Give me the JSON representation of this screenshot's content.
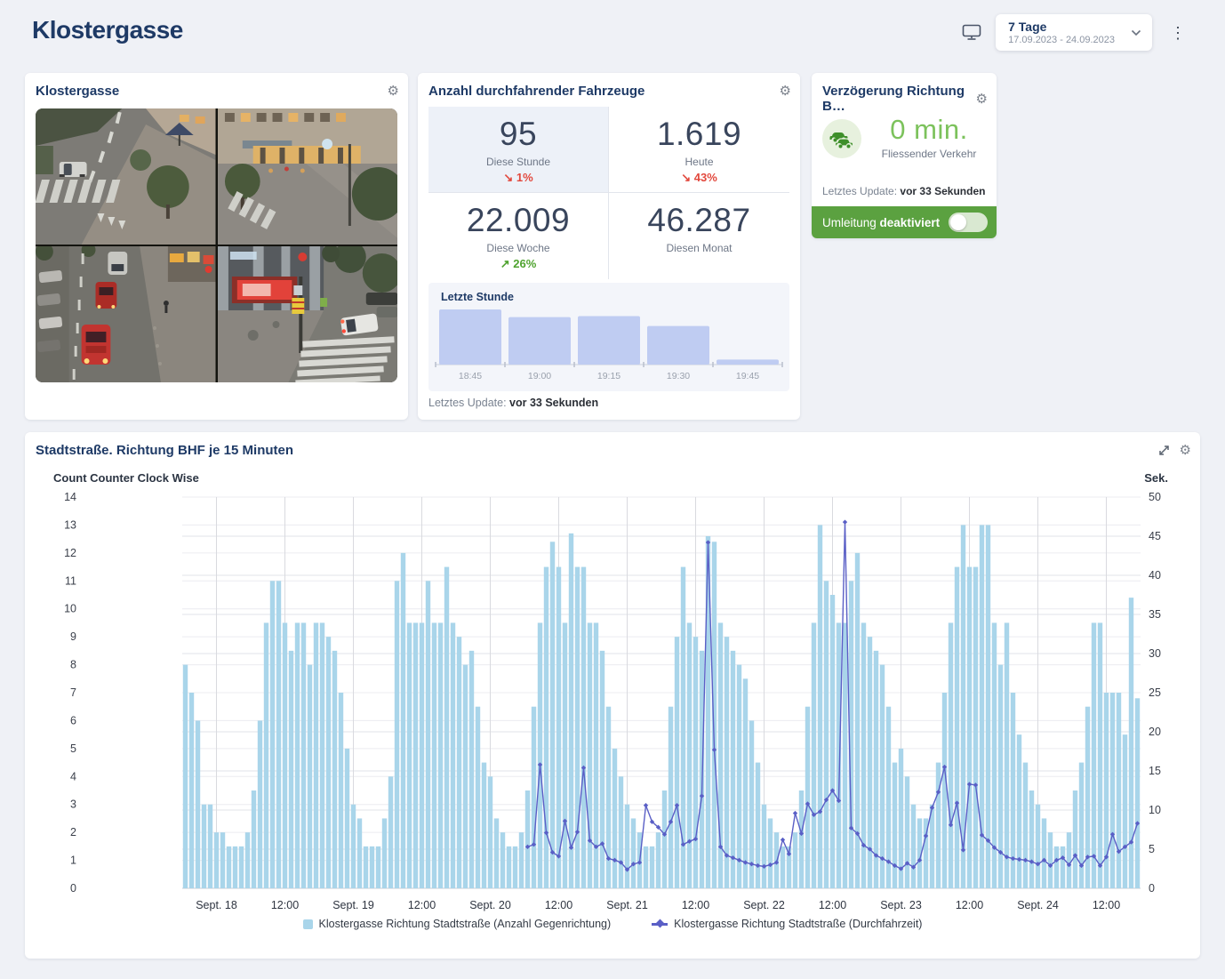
{
  "page": {
    "title": "Klostergasse"
  },
  "header": {
    "range": {
      "label": "7 Tage",
      "dates": "17.09.2023 - 24.09.2023"
    }
  },
  "icons": {
    "gear": "⚙",
    "kebab": "⋮"
  },
  "camera_card": {
    "title": "Klostergasse"
  },
  "vehicles_card": {
    "title": "Anzahl durchfahrender Fahrzeuge",
    "stats": [
      {
        "value": "95",
        "label": "Diese Stunde",
        "arrow": "↘",
        "delta": "1%",
        "trend": "down"
      },
      {
        "value": "1.619",
        "label": "Heute",
        "arrow": "↘",
        "delta": "43%",
        "trend": "down"
      },
      {
        "value": "22.009",
        "label": "Diese Woche",
        "arrow": "↗",
        "delta": "26%",
        "trend": "up"
      },
      {
        "value": "46.287",
        "label": "Diesen Monat",
        "arrow": "",
        "delta": "",
        "trend": "none"
      }
    ],
    "update_label": "Letztes Update:",
    "update_value": "vor 33 Sekunden"
  },
  "delay_card": {
    "title": "Verzögerung Richtung B…",
    "value": "0 min.",
    "status": "Fliessender Verkehr",
    "update_label": "Letztes Update:",
    "update_value": "vor 33 Sekunden",
    "banner": {
      "label": "Umleitung",
      "state": "deaktiviert",
      "enabled": false
    }
  },
  "chart_card": {
    "title": "Stadtstraße. Richtung BHF je 15 Minuten"
  },
  "colors": {
    "accent_navy": "#1e3a66",
    "bar_blue": "#a9d5ea",
    "line_purple": "#5a5fc6",
    "mini_bar_blue": "#bfccf2",
    "green_banner": "#5ba140",
    "delta_red": "#e2483d",
    "delta_green": "#4fa32f",
    "value_green": "#7cc25c"
  },
  "chart_data": [
    {
      "id": "last_hour",
      "type": "bar",
      "title": "Letzte Stunde",
      "categories": [
        "18:45",
        "19:00",
        "19:15",
        "19:30",
        "19:45"
      ],
      "values_relative": [
        1.0,
        0.86,
        0.88,
        0.7,
        0.09
      ],
      "color": "#bfccf2"
    },
    {
      "id": "main",
      "type": "bar+line",
      "title": "Stadtstraße. Richtung BHF je 15 Minuten",
      "left_axis": {
        "label": "Count Counter Clock Wise",
        "min": 0,
        "max": 14,
        "step": 1
      },
      "right_axis": {
        "label": "Sek.",
        "min": 0,
        "max": 50,
        "step": 5
      },
      "slot_count": 154,
      "x_labels": [
        {
          "text": "Sept. 18",
          "slot": 5
        },
        {
          "text": "12:00",
          "slot": 16
        },
        {
          "text": "Sept. 19",
          "slot": 27
        },
        {
          "text": "12:00",
          "slot": 38
        },
        {
          "text": "Sept. 20",
          "slot": 49
        },
        {
          "text": "12:00",
          "slot": 60
        },
        {
          "text": "Sept. 21",
          "slot": 71
        },
        {
          "text": "12:00",
          "slot": 82
        },
        {
          "text": "Sept. 22",
          "slot": 93
        },
        {
          "text": "12:00",
          "slot": 104
        },
        {
          "text": "Sept. 23",
          "slot": 115
        },
        {
          "text": "12:00",
          "slot": 126
        },
        {
          "text": "Sept. 24",
          "slot": 137
        },
        {
          "text": "12:00",
          "slot": 148
        }
      ],
      "series": [
        {
          "name": "Klostergasse Richtung Stadtstraße (Anzahl Gegenrichtung)",
          "type": "bar",
          "axis": "left",
          "color": "#a9d5ea",
          "values": [
            8,
            7,
            6,
            3,
            3,
            2,
            2,
            1.5,
            1.5,
            1.5,
            2,
            3.5,
            6,
            9.5,
            11,
            11,
            9.5,
            8.5,
            9.5,
            9.5,
            8,
            9.5,
            9.5,
            9,
            8.5,
            7,
            5,
            3,
            2.5,
            1.5,
            1.5,
            1.5,
            2.5,
            4,
            11,
            12,
            9.5,
            9.5,
            9.5,
            11,
            9.5,
            9.5,
            11.5,
            9.5,
            9,
            8,
            8.5,
            6.5,
            4.5,
            4,
            2.5,
            2,
            1.5,
            1.5,
            2,
            3.5,
            6.5,
            9.5,
            11.5,
            12.4,
            11.5,
            9.5,
            12.7,
            11.5,
            11.5,
            9.5,
            9.5,
            8.5,
            6.5,
            5,
            4,
            3,
            2.5,
            2,
            1.5,
            1.5,
            2,
            3.5,
            6.5,
            9,
            11.5,
            9.5,
            9,
            8.5,
            12.6,
            12.4,
            9.5,
            9,
            8.5,
            8,
            7.5,
            6,
            4.5,
            3,
            2.5,
            2,
            1.5,
            1.5,
            2,
            3.5,
            6.5,
            9.5,
            13,
            11,
            10.5,
            9.5,
            9.5,
            11,
            12,
            9.5,
            9,
            8.5,
            8,
            6.5,
            4.5,
            5,
            4,
            3,
            2.5,
            2.5,
            3,
            4.5,
            7,
            9.5,
            11.5,
            13,
            11.5,
            11.5,
            13,
            13,
            9.5,
            8,
            9.5,
            7,
            5.5,
            4.5,
            3.5,
            3,
            2.5,
            2,
            1.5,
            1.5,
            2,
            3.5,
            4.5,
            6.5,
            9.5,
            9.5,
            7,
            7,
            7,
            5.5,
            10.4,
            6.8
          ]
        },
        {
          "name": "Klostergasse Richtung Stadtstraße (Durchfahrzeit)",
          "type": "line",
          "axis": "right",
          "color": "#5a5fc6",
          "start_slot": 55,
          "values": [
            5.3,
            5.6,
            15.8,
            7.1,
            4.6,
            4.1,
            8.6,
            5.2,
            7.2,
            15.4,
            6.1,
            5.3,
            5.7,
            3.8,
            3.6,
            3.3,
            2.4,
            3.1,
            3.3,
            10.6,
            8.5,
            7.8,
            6.9,
            8.5,
            10.6,
            5.6,
            6.0,
            6.3,
            11.8,
            44.2,
            17.7,
            5.3,
            4.2,
            3.9,
            3.6,
            3.3,
            3.1,
            2.9,
            2.8,
            3.0,
            3.3,
            6.2,
            4.4,
            9.6,
            7.0,
            10.8,
            9.4,
            9.8,
            11.3,
            12.5,
            11.2,
            46.8,
            7.7,
            7.0,
            5.5,
            5.0,
            4.2,
            3.8,
            3.4,
            2.9,
            2.5,
            3.2,
            2.7,
            3.6,
            6.7,
            10.3,
            12.3,
            15.5,
            8.1,
            10.9,
            4.9,
            13.3,
            13.2,
            6.8,
            6.1,
            5.2,
            4.6,
            4.0,
            3.8,
            3.7,
            3.6,
            3.4,
            3.1,
            3.6,
            2.9,
            3.6,
            3.9,
            3.0,
            4.2,
            2.9,
            4.0,
            4.1,
            2.9,
            4.0,
            6.9,
            4.7,
            5.3,
            5.9,
            8.3
          ]
        }
      ]
    }
  ]
}
